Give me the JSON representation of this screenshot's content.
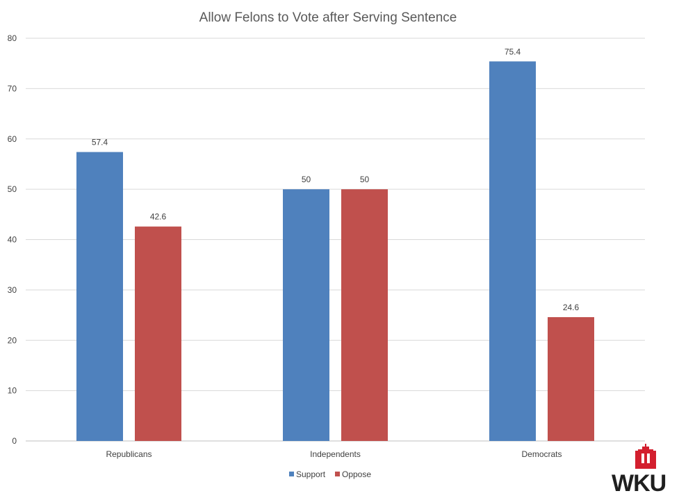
{
  "chart_data": {
    "type": "bar",
    "title": "Allow Felons to Vote after Serving Sentence",
    "categories": [
      "Republicans",
      "Independents",
      "Democrats"
    ],
    "series": [
      {
        "name": "Support",
        "values": [
          57.4,
          50,
          75.4
        ],
        "color": "#4f81bd"
      },
      {
        "name": "Oppose",
        "values": [
          42.6,
          50,
          24.6
        ],
        "color": "#c0504d"
      }
    ],
    "data_labels": [
      [
        "57.4",
        "50",
        "75.4"
      ],
      [
        "42.6",
        "50",
        "24.6"
      ]
    ],
    "yticks": [
      "0",
      "10",
      "20",
      "30",
      "40",
      "50",
      "60",
      "70",
      "80"
    ],
    "ylim": [
      0,
      80
    ],
    "grid": true,
    "legend_position": "bottom"
  },
  "logo": {
    "text": "WKU",
    "color": "#d31f2e",
    "icon": "wku-cupola-icon"
  }
}
